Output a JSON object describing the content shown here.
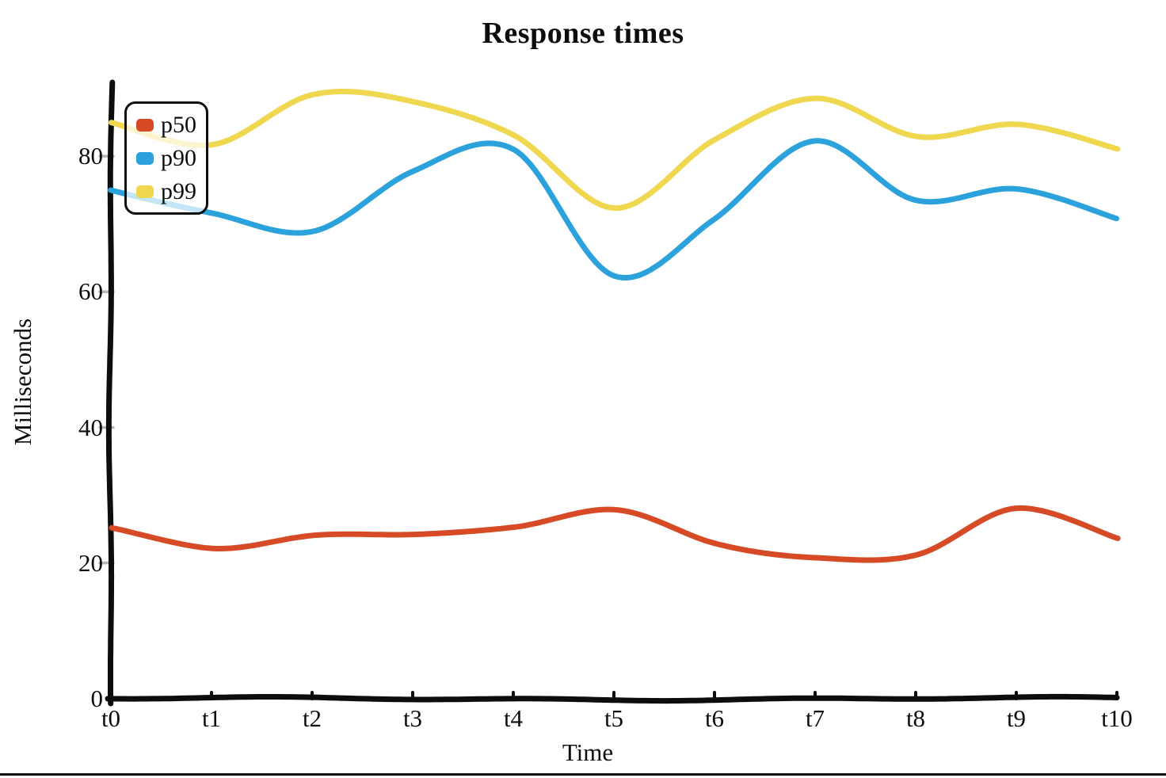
{
  "chart_data": {
    "type": "line",
    "title": "Response times",
    "xlabel": "Time",
    "ylabel": "Milliseconds",
    "categories": [
      "t0",
      "t1",
      "t2",
      "t3",
      "t4",
      "t5",
      "t6",
      "t7",
      "t8",
      "t9",
      "t10"
    ],
    "yticks": [
      0,
      20,
      40,
      60,
      80
    ],
    "ylim": [
      0,
      90
    ],
    "grid": false,
    "legend_position": "top-left",
    "axis_color": "#0d0d0d",
    "tick_color": "#b5b5b5",
    "style": "hand-drawn (xkcd)",
    "series": [
      {
        "name": "p50",
        "color": "#d64a26",
        "values": [
          25,
          22,
          24,
          24,
          25.5,
          28,
          23,
          21,
          21,
          28,
          23.5
        ]
      },
      {
        "name": "p90",
        "color": "#2ba2dc",
        "values": [
          75,
          71.5,
          69,
          78,
          81,
          62.5,
          70.5,
          82,
          73.5,
          75,
          71
        ]
      },
      {
        "name": "p99",
        "color": "#efd750",
        "values": [
          85,
          82,
          89,
          88,
          83,
          72,
          82.5,
          88.5,
          83,
          85,
          81
        ]
      }
    ]
  }
}
